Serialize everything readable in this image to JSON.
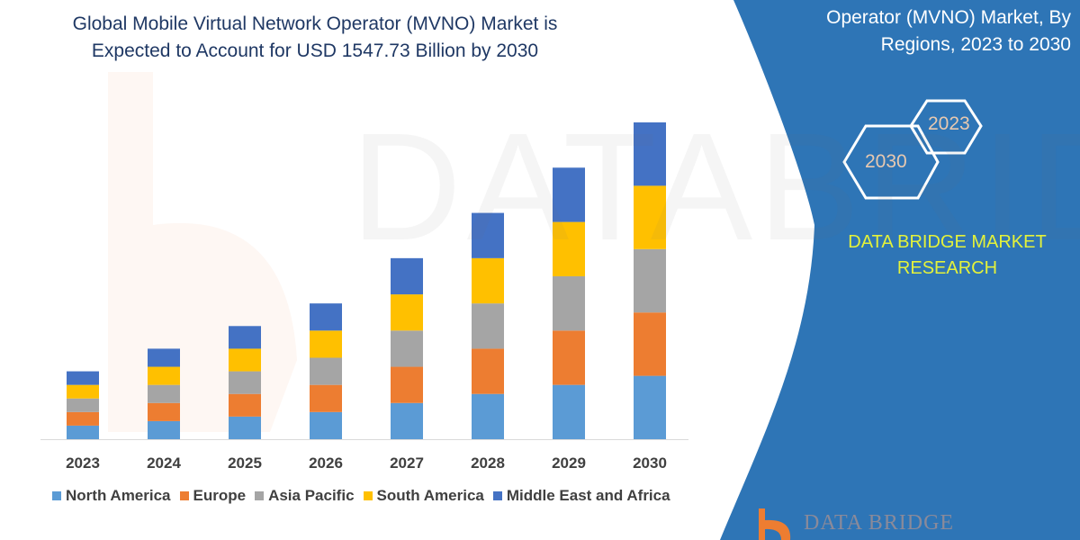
{
  "title": [
    "Global Mobile Virtual Network Operator (MVNO) Market is",
    "Expected to Account for USD 1547.73 Billion by 2030"
  ],
  "side_panel": {
    "title": [
      "Operator (MVNO) Market, By",
      "Regions, 2023 to 2030"
    ],
    "hexagons": [
      "2023",
      "2030"
    ],
    "brand": [
      "DATA BRIDGE MARKET",
      "RESEARCH"
    ],
    "logo_text": "DATA BRIDGE",
    "panel_color": "#2e75b6"
  },
  "watermark": "DATABRIDGE",
  "chart_data": {
    "type": "bar",
    "stacked": true,
    "title": "",
    "xlabel": "",
    "ylabel": "",
    "ylim": [
      0,
      350
    ],
    "grid": false,
    "legend_position": "bottom",
    "categories": [
      "2023",
      "2024",
      "2025",
      "2026",
      "2027",
      "2028",
      "2029",
      "2030"
    ],
    "series": [
      {
        "name": "North America",
        "color": "#5b9bd5",
        "values": [
          15,
          20,
          25,
          30,
          40,
          50,
          60,
          70
        ]
      },
      {
        "name": "Europe",
        "color": "#ed7d31",
        "values": [
          15,
          20,
          25,
          30,
          40,
          50,
          60,
          70
        ]
      },
      {
        "name": "Asia Pacific",
        "color": "#a5a5a5",
        "values": [
          15,
          20,
          25,
          30,
          40,
          50,
          60,
          70
        ]
      },
      {
        "name": "South America",
        "color": "#ffc000",
        "values": [
          15,
          20,
          25,
          30,
          40,
          50,
          60,
          70
        ]
      },
      {
        "name": "Middle East and Africa",
        "color": "#4472c4",
        "values": [
          15,
          20,
          25,
          30,
          40,
          50,
          60,
          70
        ]
      }
    ]
  }
}
